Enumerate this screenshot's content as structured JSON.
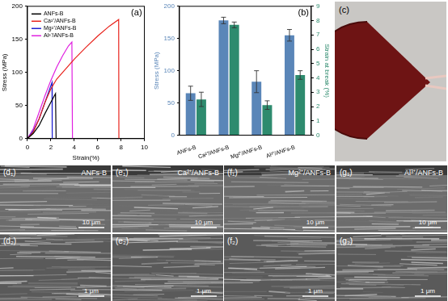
{
  "chart_data": [
    {
      "type": "line",
      "title": "(a)",
      "x_label": "Strain(%)",
      "y_label": "Stress (MPa)",
      "xlim": [
        0,
        10
      ],
      "xticks": [
        0,
        2,
        4,
        6,
        8,
        10
      ],
      "ylim": [
        0,
        200
      ],
      "yticks": [
        0,
        50,
        100,
        150,
        200
      ],
      "grid": false,
      "legend": "upper left",
      "series": [
        {
          "name": "ANFs-B",
          "color": "#000000",
          "x": [
            0,
            0.5,
            1,
            1.5,
            2,
            2.4,
            2.45
          ],
          "values": [
            0,
            8,
            20,
            38,
            55,
            68,
            0
          ]
        },
        {
          "name": "Ca²⁺/ANFs-B",
          "color": "#e8211a",
          "x": [
            0,
            0.5,
            1,
            1.5,
            2,
            2.5,
            3,
            4,
            5,
            6,
            7,
            7.8,
            7.82
          ],
          "values": [
            0,
            10,
            30,
            55,
            75,
            90,
            100,
            120,
            138,
            155,
            170,
            180,
            0
          ]
        },
        {
          "name": "Mg²⁺/ANFs-B",
          "color": "#1f1fd0",
          "x": [
            0,
            0.5,
            1,
            1.5,
            2,
            2.1,
            2.12
          ],
          "values": [
            0,
            12,
            30,
            55,
            80,
            85,
            0
          ]
        },
        {
          "name": "Al³⁺/ANFs-B",
          "color": "#e020e0",
          "x": [
            0,
            0.5,
            1,
            1.5,
            2,
            2.5,
            3,
            3.5,
            3.8,
            3.85
          ],
          "values": [
            0,
            15,
            40,
            65,
            88,
            108,
            125,
            140,
            146,
            0
          ]
        }
      ]
    },
    {
      "type": "bar",
      "title": "(b)",
      "categories": [
        "ANFs-B",
        "Ca²⁺/ANFs-B",
        "Mg²⁺/ANFs-B",
        "Al³⁺/ANFs-B"
      ],
      "y_label": "Stress (MPa)",
      "y2_label": "Strain at break (%)",
      "ylim": [
        0,
        200
      ],
      "yticks": [
        0,
        50,
        100,
        150,
        200
      ],
      "y2lim": [
        0,
        9
      ],
      "y2ticks": [
        0,
        1,
        2,
        3,
        4,
        5,
        6,
        7,
        8,
        9
      ],
      "grid": false,
      "series": [
        {
          "color": "#5a86b8",
          "values": [
            65,
            178,
            83,
            155
          ],
          "errors": [
            11,
            5,
            17,
            9
          ]
        },
        {
          "color": "#2e8b6e",
          "axis": "y2",
          "values": [
            2.5,
            7.7,
            2.1,
            4.2
          ],
          "errors": [
            0.5,
            0.2,
            0.3,
            0.3
          ]
        }
      ]
    }
  ],
  "photo": {
    "label": "(c)"
  },
  "micrographs": [
    {
      "label": "(d₁)",
      "title": "ANFs-B",
      "scale_bar": "10 μm"
    },
    {
      "label": "(e₁)",
      "title": "Ca²⁺/ANFs-B",
      "scale_bar": "10 μm"
    },
    {
      "label": "(f₁)",
      "title": "Mg²⁺/ANFs-B",
      "scale_bar": "10 μm"
    },
    {
      "label": "(g₁)",
      "title": "Al³⁺/ANFs-B",
      "scale_bar": "10 μm"
    },
    {
      "label": "(d₂)",
      "scale_bar": "1 μm"
    },
    {
      "label": "(e₂)",
      "scale_bar": "1 μm"
    },
    {
      "label": "(f₂)",
      "scale_bar": "1 μm"
    },
    {
      "label": "(g₂)",
      "scale_bar": "1 μm"
    }
  ]
}
